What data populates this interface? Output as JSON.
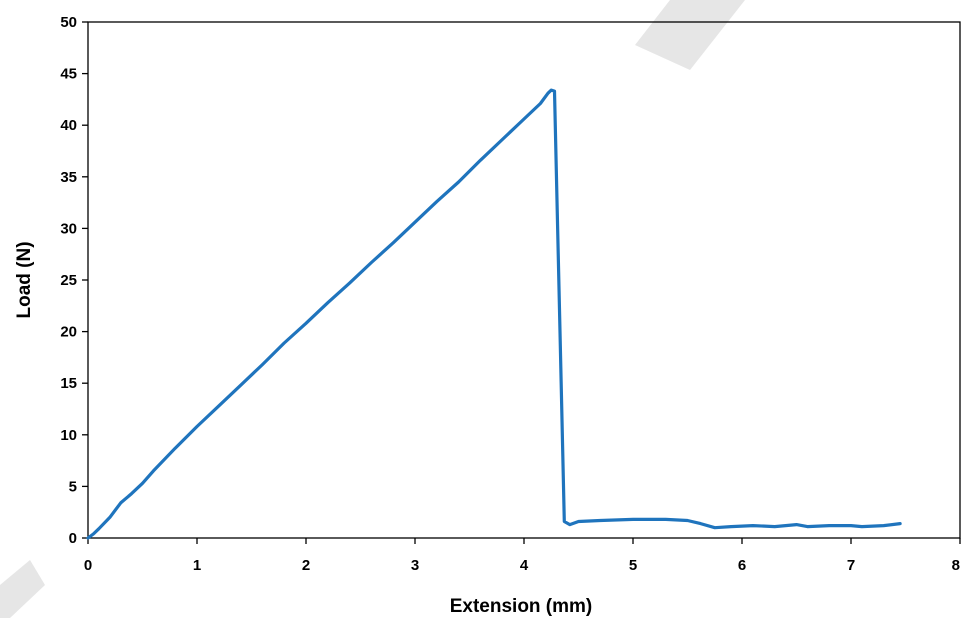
{
  "chart_data": {
    "type": "line",
    "title": "",
    "xlabel": "Extension (mm)",
    "ylabel": "Load (N)",
    "xlim": [
      0,
      8
    ],
    "ylim": [
      0,
      50
    ],
    "xticks": [
      "0",
      "1",
      "2",
      "3",
      "4",
      "5",
      "6",
      "7",
      "8"
    ],
    "yticks": [
      "0",
      "5",
      "10",
      "15",
      "20",
      "25",
      "30",
      "35",
      "40",
      "45",
      "50"
    ],
    "grid": false,
    "legend": "none",
    "series": [
      {
        "color": "#1f74bd",
        "points": [
          [
            0.0,
            0.0
          ],
          [
            0.05,
            0.4
          ],
          [
            0.1,
            0.9
          ],
          [
            0.2,
            2.0
          ],
          [
            0.3,
            3.4
          ],
          [
            0.4,
            4.3
          ],
          [
            0.5,
            5.3
          ],
          [
            0.6,
            6.5
          ],
          [
            0.8,
            8.7
          ],
          [
            1.0,
            10.8
          ],
          [
            1.2,
            12.8
          ],
          [
            1.4,
            14.8
          ],
          [
            1.6,
            16.8
          ],
          [
            1.8,
            18.9
          ],
          [
            2.0,
            20.8
          ],
          [
            2.2,
            22.8
          ],
          [
            2.4,
            24.7
          ],
          [
            2.6,
            26.7
          ],
          [
            2.8,
            28.6
          ],
          [
            3.0,
            30.6
          ],
          [
            3.2,
            32.6
          ],
          [
            3.4,
            34.5
          ],
          [
            3.6,
            36.6
          ],
          [
            3.8,
            38.6
          ],
          [
            4.0,
            40.6
          ],
          [
            4.15,
            42.1
          ],
          [
            4.22,
            43.1
          ],
          [
            4.25,
            43.4
          ],
          [
            4.28,
            43.3
          ],
          [
            4.33,
            20.0
          ],
          [
            4.37,
            1.6
          ],
          [
            4.42,
            1.3
          ],
          [
            4.5,
            1.6
          ],
          [
            4.7,
            1.7
          ],
          [
            5.0,
            1.8
          ],
          [
            5.3,
            1.8
          ],
          [
            5.5,
            1.7
          ],
          [
            5.62,
            1.4
          ],
          [
            5.75,
            1.0
          ],
          [
            5.9,
            1.1
          ],
          [
            6.1,
            1.2
          ],
          [
            6.3,
            1.1
          ],
          [
            6.5,
            1.3
          ],
          [
            6.6,
            1.1
          ],
          [
            6.8,
            1.2
          ],
          [
            7.0,
            1.2
          ],
          [
            7.1,
            1.1
          ],
          [
            7.3,
            1.2
          ],
          [
            7.45,
            1.4
          ]
        ]
      }
    ]
  }
}
